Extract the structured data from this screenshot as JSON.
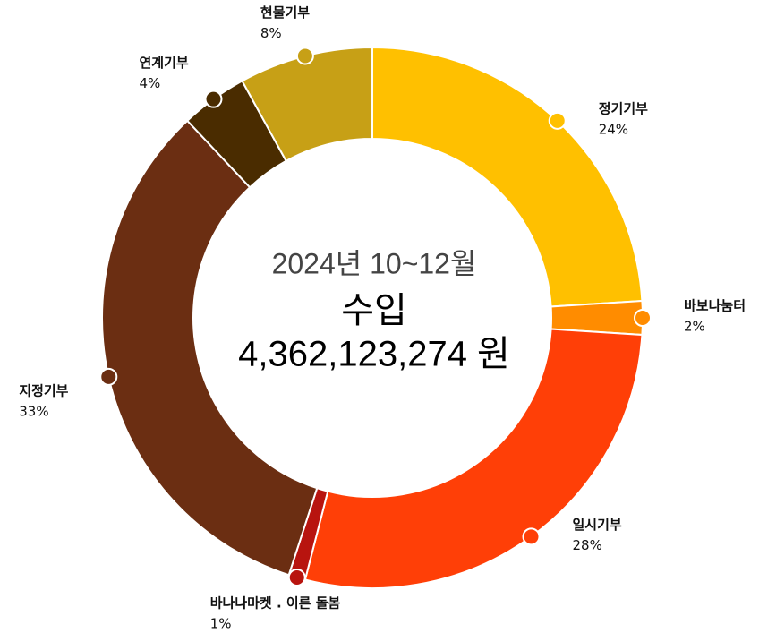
{
  "chart_data": {
    "type": "pie",
    "title": "2024년 10~12월",
    "subtitle": "수입",
    "total": "4,362,123,274 원",
    "categories": [
      "정기기부",
      "바보나눔터",
      "일시기부",
      "바나나마켓 . 이른 돌봄",
      "지정기부",
      "연계기부",
      "현물기부"
    ],
    "values": [
      24,
      2,
      28,
      1,
      33,
      4,
      8
    ],
    "value_labels": [
      "24%",
      "2%",
      "28%",
      "1%",
      "33%",
      "4%",
      "8%"
    ],
    "colors": [
      "#ffc000",
      "#ff8c00",
      "#ff3f07",
      "#b8140f",
      "#6b2e12",
      "#4a2c00",
      "#c7a016"
    ]
  }
}
